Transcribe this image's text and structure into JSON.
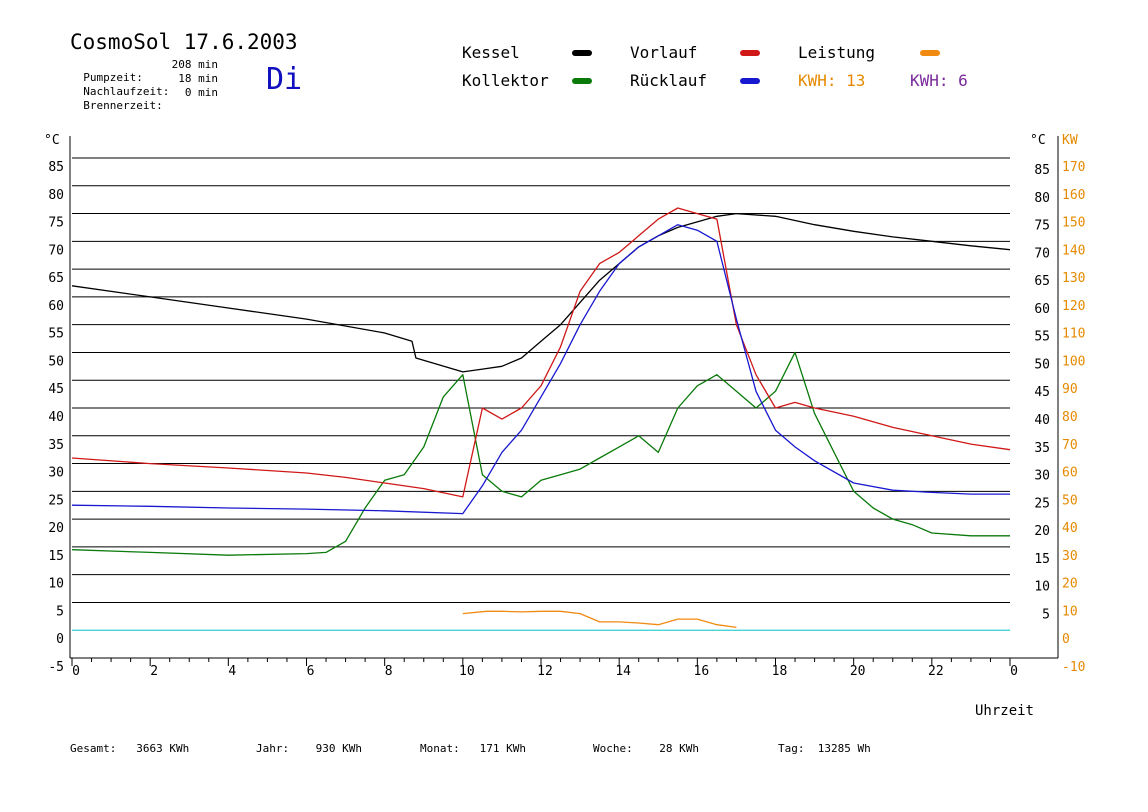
{
  "header": {
    "title": "CosmoSol 17.6.2003",
    "day": "Di",
    "stats": [
      {
        "label": "Pumpzeit:",
        "value": "208 min"
      },
      {
        "label": "Nachlaufzeit:",
        "value": "18 min"
      },
      {
        "label": "Brennerzeit:",
        "value": "0 min"
      }
    ]
  },
  "legend": [
    {
      "name": "Kessel",
      "color": "#000000"
    },
    {
      "name": "Kollektor",
      "color": "#0a7a0a"
    },
    {
      "name": "Vorlauf",
      "color": "#d01818"
    },
    {
      "name": "Rücklauf",
      "color": "#1818d0"
    },
    {
      "name": "Leistung",
      "color": "#f08a10"
    }
  ],
  "kwh": [
    {
      "label": "KWH:",
      "value": "13",
      "color": "#e58a00"
    },
    {
      "label": "KWH:",
      "value": "6",
      "color": "#7a2a9a"
    }
  ],
  "footer": [
    {
      "label": "Gesamt:",
      "value": "3663 KWh"
    },
    {
      "label": "Jahr:",
      "value": "930 KWh"
    },
    {
      "label": "Monat:",
      "value": "171 KWh"
    },
    {
      "label": "Woche:",
      "value": "28 KWh"
    },
    {
      "label": "Tag:",
      "value": "13285 Wh"
    }
  ],
  "chart_data": {
    "type": "line",
    "xlabel": "Uhrzeit",
    "ylabel_left": "°C",
    "ylabel_right_1": "°C",
    "ylabel_right_2": "KW",
    "xlim": [
      0,
      24
    ],
    "ylim": [
      -5,
      85
    ],
    "grid": true,
    "x_ticks": [
      "0",
      "2",
      "4",
      "6",
      "8",
      "10",
      "12",
      "14",
      "16",
      "18",
      "20",
      "22",
      "0"
    ],
    "y_ticks_left": [
      "85",
      "80",
      "75",
      "70",
      "65",
      "60",
      "55",
      "50",
      "45",
      "40",
      "35",
      "30",
      "25",
      "20",
      "15",
      "10",
      "5",
      "0",
      "-5"
    ],
    "y_ticks_right_celsius": [
      "85",
      "80",
      "75",
      "70",
      "65",
      "60",
      "55",
      "50",
      "45",
      "40",
      "35",
      "30",
      "25",
      "20",
      "15",
      "10",
      "5"
    ],
    "y_ticks_right_kw": [
      "170",
      "160",
      "150",
      "140",
      "130",
      "120",
      "110",
      "100",
      "90",
      "80",
      "70",
      "60",
      "50",
      "40",
      "30",
      "20",
      "10",
      "0",
      "-10"
    ],
    "series": [
      {
        "name": "Kessel",
        "color": "#000000",
        "x": [
          0,
          2,
          4,
          6,
          8,
          8.7,
          8.8,
          10,
          10.5,
          11,
          11.5,
          12,
          12.5,
          13,
          13.5,
          14,
          14.5,
          15,
          15.5,
          16,
          16.5,
          17,
          18,
          19,
          20,
          21,
          22,
          23,
          24
        ],
        "y": [
          62,
          60,
          58,
          56,
          53.5,
          52,
          49,
          46.5,
          47,
          47.5,
          49,
          52,
          55,
          59,
          63,
          66,
          69,
          71,
          72.5,
          73.5,
          74.5,
          75,
          74.5,
          73,
          71.8,
          70.8,
          70,
          69.2,
          68.5
        ]
      },
      {
        "name": "Kollektor",
        "color": "#0a7a0a",
        "x": [
          0,
          2,
          4,
          6,
          6.5,
          7,
          7.5,
          8,
          8.5,
          9,
          9.5,
          10,
          10.5,
          11,
          11.5,
          12,
          12.5,
          13,
          13.5,
          14,
          14.5,
          15,
          15.5,
          16,
          16.5,
          17,
          17.5,
          18,
          18.5,
          19,
          19.5,
          20,
          20.5,
          21,
          21.5,
          22,
          23,
          24
        ],
        "y": [
          14.5,
          14,
          13.5,
          13.8,
          14,
          16,
          22,
          27,
          28,
          33,
          42,
          46,
          28,
          25,
          24,
          27,
          28,
          29,
          31,
          33,
          35,
          32,
          40,
          44,
          46,
          43,
          40,
          43,
          50,
          39,
          32,
          25,
          22,
          20,
          19,
          17.5,
          17,
          17
        ]
      },
      {
        "name": "Vorlauf",
        "color": "#d01818",
        "x": [
          0,
          2,
          4,
          6,
          7,
          8,
          9,
          10,
          10.5,
          11,
          11.5,
          12,
          12.5,
          13,
          13.5,
          14,
          14.5,
          15,
          15.5,
          16,
          16.5,
          17,
          17.5,
          18,
          18.5,
          19,
          20,
          21,
          22,
          23,
          24
        ],
        "y": [
          31,
          30,
          29.2,
          28.3,
          27.5,
          26.5,
          25.5,
          24,
          40,
          38,
          40,
          44,
          51,
          61,
          66,
          68,
          71,
          74,
          76,
          75,
          74,
          55,
          46,
          40,
          41,
          40,
          38.5,
          36.5,
          35,
          33.5,
          32.5
        ]
      },
      {
        "name": "Rücklauf",
        "color": "#1818d0",
        "x": [
          0,
          2,
          4,
          6,
          8,
          10,
          10.5,
          11,
          11.5,
          12,
          12.5,
          13,
          13.5,
          14,
          14.5,
          15,
          15.5,
          16,
          16.5,
          17,
          17.5,
          18,
          18.5,
          19,
          20,
          21,
          22,
          23,
          24
        ],
        "y": [
          22.5,
          22.3,
          22,
          21.8,
          21.5,
          21,
          26,
          32,
          36,
          42,
          48,
          55,
          61,
          66,
          69,
          71,
          73,
          72,
          70,
          56,
          43,
          36,
          33,
          30.5,
          26.5,
          25.2,
          24.8,
          24.5,
          24.5
        ]
      },
      {
        "name": "Leistung",
        "color": "#f08a10",
        "x": [
          10,
          10.6,
          11,
          11.5,
          12,
          12.5,
          13,
          13.5,
          14,
          14.5,
          15,
          15.5,
          16,
          16.5,
          17
        ],
        "y": [
          3,
          3.4,
          3.4,
          3.3,
          3.4,
          3.4,
          3,
          1.5,
          1.5,
          1.3,
          1,
          2,
          2,
          1,
          0.5
        ]
      }
    ]
  }
}
